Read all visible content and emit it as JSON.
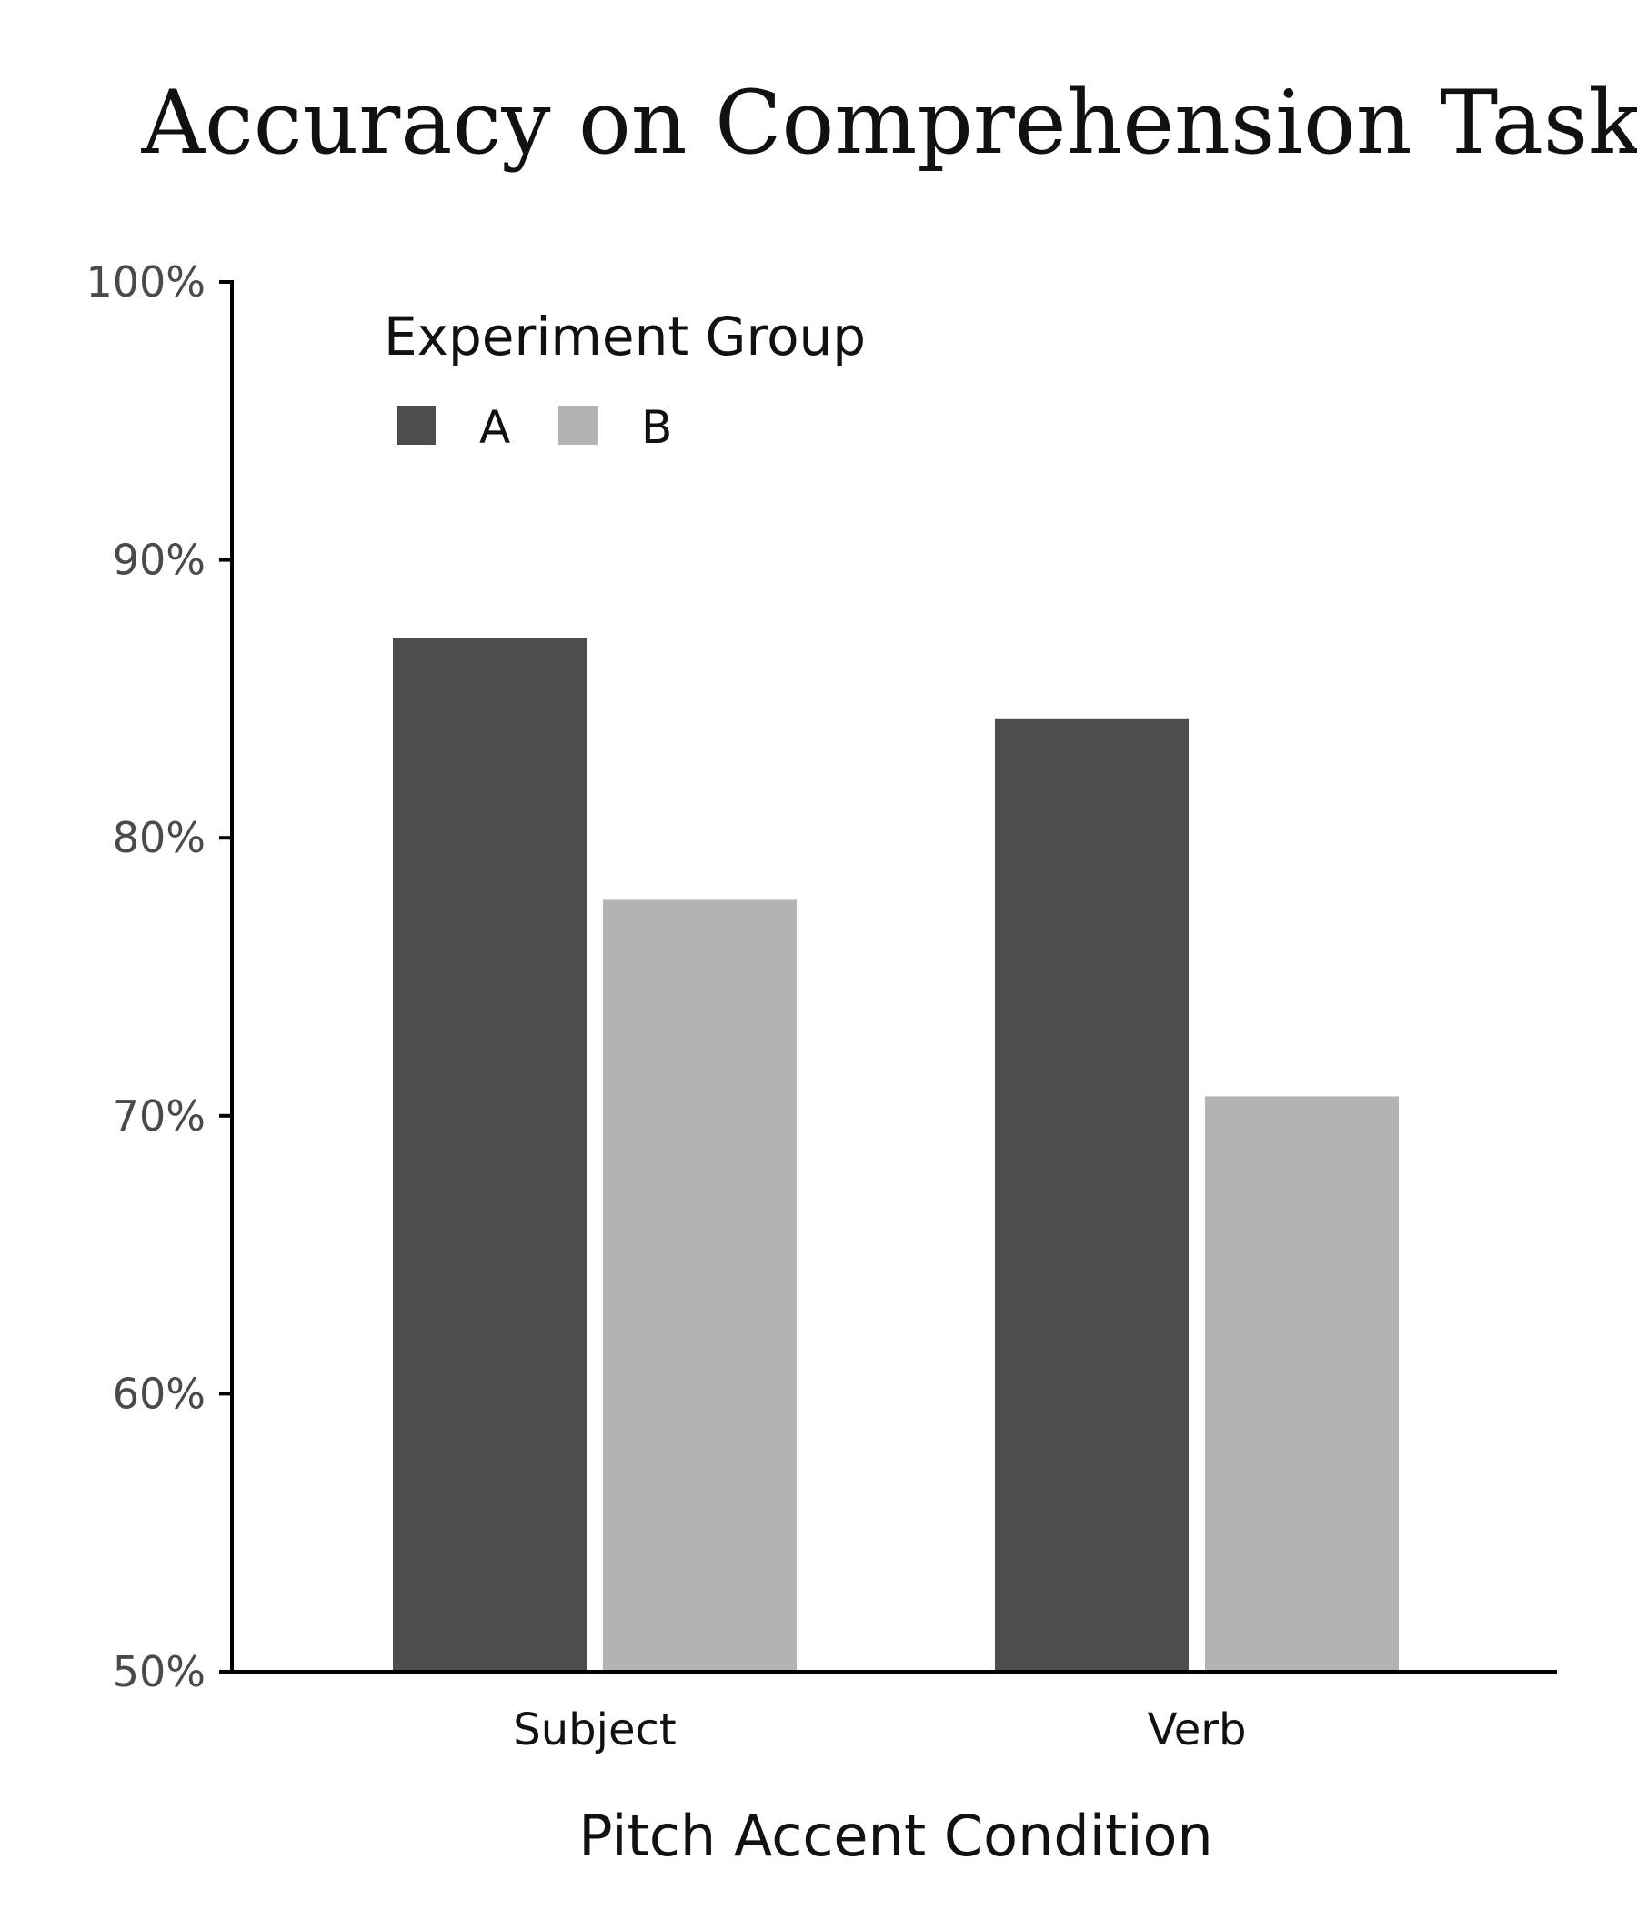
{
  "chart_data": {
    "type": "bar",
    "title": "Accuracy on Comprehension Task",
    "xlabel": "Pitch Accent Condition",
    "ylabel": "",
    "categories": [
      "Subject",
      "Verb"
    ],
    "series": [
      {
        "name": "A",
        "values": [
          0.872,
          0.843
        ],
        "color": "#4d4d4d"
      },
      {
        "name": "B",
        "values": [
          0.778,
          0.707
        ],
        "color": "#b3b3b3"
      }
    ],
    "ylim": [
      0.5,
      1.0
    ],
    "y_ticks": [
      0.5,
      0.6,
      0.7,
      0.8,
      0.9,
      1.0
    ],
    "y_tick_labels": [
      "50%",
      "60%",
      "70%",
      "80%",
      "90%",
      "100%"
    ],
    "legend": {
      "title": "Experiment Group",
      "placement": "top-left",
      "orientation": "horizontal"
    },
    "grid": false
  }
}
